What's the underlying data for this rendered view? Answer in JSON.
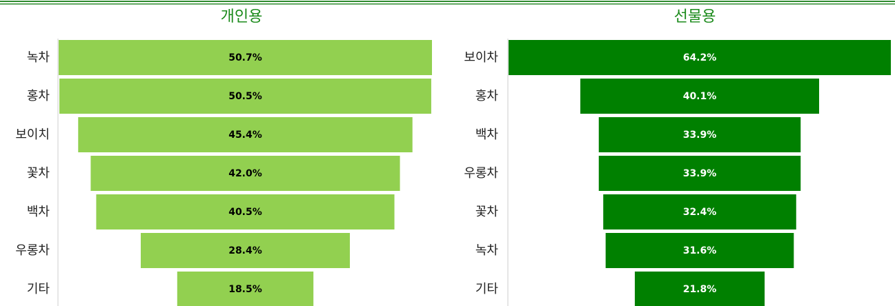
{
  "chart_data": [
    {
      "type": "funnel",
      "title": "개인용",
      "color": "#92d050",
      "label_color": "#000000",
      "categories": [
        "녹차",
        "홍차",
        "보이치",
        "꽃차",
        "백차",
        "우롱차",
        "기타"
      ],
      "values": [
        50.7,
        50.5,
        45.4,
        42.0,
        40.5,
        28.4,
        18.5
      ],
      "value_labels": [
        "50.7%",
        "50.5%",
        "45.4%",
        "42.0%",
        "40.5%",
        "28.4%",
        "18.5%"
      ]
    },
    {
      "type": "funnel",
      "title": "선물용",
      "color": "#008000",
      "label_color": "#ffffff",
      "categories": [
        "보이차",
        "홍차",
        "백차",
        "우롱차",
        "꽃차",
        "녹차",
        "기타"
      ],
      "values": [
        64.2,
        40.1,
        33.9,
        33.9,
        32.4,
        31.6,
        21.8
      ],
      "value_labels": [
        "64.2%",
        "40.1%",
        "33.9%",
        "33.9%",
        "32.4%",
        "31.6%",
        "21.8%"
      ]
    }
  ]
}
